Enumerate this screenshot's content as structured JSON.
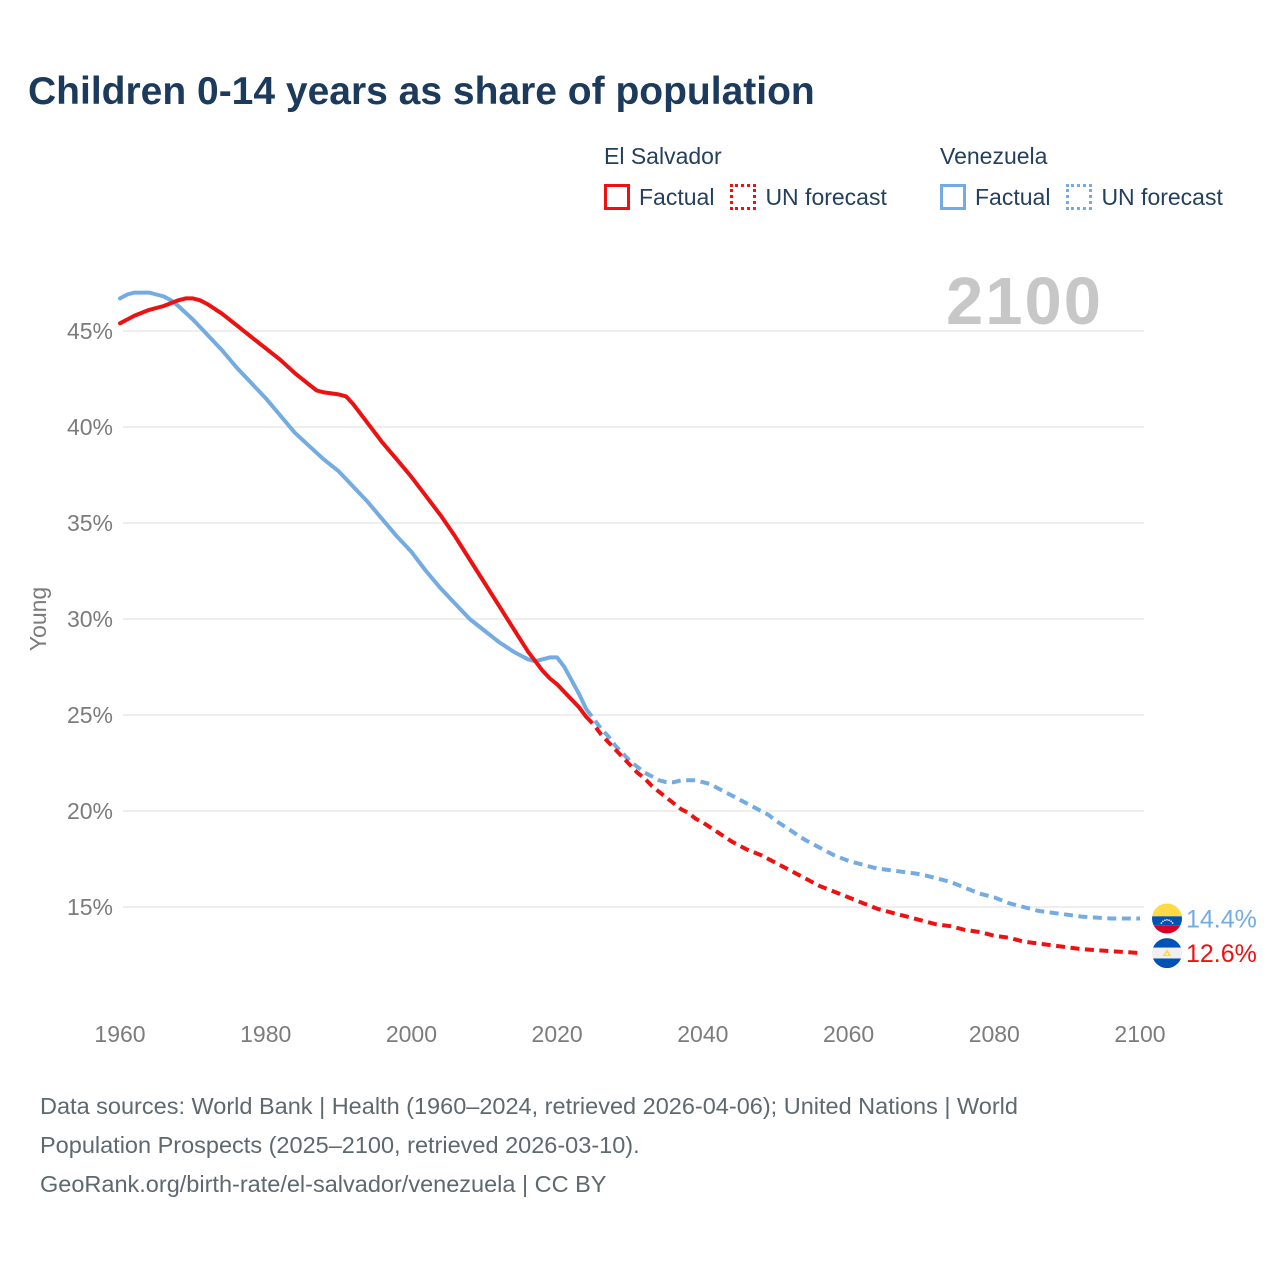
{
  "title": "Children 0-14 years as share of population",
  "watermark": "2100",
  "legend": {
    "groups": [
      {
        "country": "El Salvador",
        "color": "#ee1111",
        "items": [
          {
            "label": "Factual",
            "style": "solid"
          },
          {
            "label": "UN forecast",
            "style": "dotted"
          }
        ]
      },
      {
        "country": "Venezuela",
        "color": "#74ace2",
        "items": [
          {
            "label": "Factual",
            "style": "solid"
          },
          {
            "label": "UN forecast",
            "style": "dotted"
          }
        ]
      }
    ]
  },
  "chart_data": {
    "type": "line",
    "title": "Children 0-14 years as share of population",
    "xlabel": "",
    "ylabel": "Young",
    "grid": true,
    "xlim": [
      1958,
      2106
    ],
    "ylim": [
      12,
      48
    ],
    "x_ticks": [
      {
        "value": 1960,
        "label": "1960"
      },
      {
        "value": 1980,
        "label": "1980"
      },
      {
        "value": 2000,
        "label": "2000"
      },
      {
        "value": 2020,
        "label": "2020"
      },
      {
        "value": 2040,
        "label": "2040"
      },
      {
        "value": 2060,
        "label": "2060"
      },
      {
        "value": 2080,
        "label": "2080"
      },
      {
        "value": 2100,
        "label": "2100"
      }
    ],
    "y_ticks": [
      {
        "value": 45,
        "label": "45%"
      },
      {
        "value": 40,
        "label": "40%"
      },
      {
        "value": 35,
        "label": "35%"
      },
      {
        "value": 30,
        "label": "30%"
      },
      {
        "value": 25,
        "label": "25%"
      },
      {
        "value": 20,
        "label": "20%"
      },
      {
        "value": 15,
        "label": "15%"
      }
    ],
    "series": [
      {
        "name": "Venezuela Factual",
        "key": "venezuela-factual",
        "color": "#74ace2",
        "dashed": false,
        "points": [
          [
            1960,
            46.7
          ],
          [
            1961,
            46.9
          ],
          [
            1962,
            47.0
          ],
          [
            1963,
            47.0
          ],
          [
            1964,
            47.0
          ],
          [
            1965,
            46.9
          ],
          [
            1966,
            46.8
          ],
          [
            1967,
            46.6
          ],
          [
            1968,
            46.3
          ],
          [
            1970,
            45.6
          ],
          [
            1972,
            44.8
          ],
          [
            1974,
            44.0
          ],
          [
            1976,
            43.1
          ],
          [
            1978,
            42.3
          ],
          [
            1980,
            41.5
          ],
          [
            1982,
            40.6
          ],
          [
            1984,
            39.7
          ],
          [
            1986,
            39.0
          ],
          [
            1988,
            38.3
          ],
          [
            1990,
            37.7
          ],
          [
            1992,
            36.9
          ],
          [
            1994,
            36.1
          ],
          [
            1996,
            35.2
          ],
          [
            1998,
            34.3
          ],
          [
            2000,
            33.5
          ],
          [
            2002,
            32.5
          ],
          [
            2004,
            31.6
          ],
          [
            2006,
            30.8
          ],
          [
            2008,
            30.0
          ],
          [
            2010,
            29.4
          ],
          [
            2012,
            28.8
          ],
          [
            2014,
            28.3
          ],
          [
            2015,
            28.1
          ],
          [
            2016,
            27.9
          ],
          [
            2017,
            27.8
          ],
          [
            2018,
            27.9
          ],
          [
            2019,
            28.0
          ],
          [
            2020,
            28.0
          ],
          [
            2021,
            27.5
          ],
          [
            2022,
            26.8
          ],
          [
            2023,
            26.1
          ],
          [
            2024,
            25.3
          ]
        ]
      },
      {
        "name": "Venezuela UN forecast",
        "key": "venezuela-forecast",
        "color": "#74ace2",
        "dashed": true,
        "points": [
          [
            2024,
            25.3
          ],
          [
            2025,
            24.8
          ],
          [
            2026,
            24.3
          ],
          [
            2027,
            23.9
          ],
          [
            2028,
            23.4
          ],
          [
            2029,
            23.0
          ],
          [
            2030,
            22.6
          ],
          [
            2031,
            22.3
          ],
          [
            2032,
            22.0
          ],
          [
            2033,
            21.8
          ],
          [
            2034,
            21.6
          ],
          [
            2035,
            21.5
          ],
          [
            2036,
            21.5
          ],
          [
            2037,
            21.6
          ],
          [
            2038,
            21.6
          ],
          [
            2039,
            21.6
          ],
          [
            2040,
            21.5
          ],
          [
            2041,
            21.4
          ],
          [
            2042,
            21.2
          ],
          [
            2043,
            21.0
          ],
          [
            2044,
            20.8
          ],
          [
            2045,
            20.6
          ],
          [
            2046,
            20.4
          ],
          [
            2047,
            20.2
          ],
          [
            2048,
            20.0
          ],
          [
            2049,
            19.8
          ],
          [
            2050,
            19.5
          ],
          [
            2052,
            19.0
          ],
          [
            2054,
            18.5
          ],
          [
            2056,
            18.1
          ],
          [
            2058,
            17.7
          ],
          [
            2060,
            17.4
          ],
          [
            2062,
            17.2
          ],
          [
            2064,
            17.0
          ],
          [
            2066,
            16.9
          ],
          [
            2068,
            16.8
          ],
          [
            2070,
            16.7
          ],
          [
            2072,
            16.5
          ],
          [
            2074,
            16.3
          ],
          [
            2076,
            16.0
          ],
          [
            2078,
            15.7
          ],
          [
            2080,
            15.5
          ],
          [
            2082,
            15.2
          ],
          [
            2084,
            15.0
          ],
          [
            2086,
            14.8
          ],
          [
            2088,
            14.7
          ],
          [
            2090,
            14.6
          ],
          [
            2092,
            14.5
          ],
          [
            2094,
            14.45
          ],
          [
            2096,
            14.4
          ],
          [
            2098,
            14.4
          ],
          [
            2100,
            14.4
          ]
        ]
      },
      {
        "name": "El Salvador Factual",
        "key": "el-salvador-factual",
        "color": "#ee1111",
        "dashed": false,
        "points": [
          [
            1960,
            45.4
          ],
          [
            1962,
            45.8
          ],
          [
            1964,
            46.1
          ],
          [
            1966,
            46.3
          ],
          [
            1968,
            46.6
          ],
          [
            1969,
            46.7
          ],
          [
            1970,
            46.7
          ],
          [
            1971,
            46.6
          ],
          [
            1972,
            46.4
          ],
          [
            1974,
            45.9
          ],
          [
            1976,
            45.3
          ],
          [
            1978,
            44.7
          ],
          [
            1980,
            44.1
          ],
          [
            1982,
            43.5
          ],
          [
            1984,
            42.8
          ],
          [
            1986,
            42.2
          ],
          [
            1987,
            41.9
          ],
          [
            1988,
            41.8
          ],
          [
            1990,
            41.7
          ],
          [
            1991,
            41.6
          ],
          [
            1992,
            41.2
          ],
          [
            1994,
            40.2
          ],
          [
            1996,
            39.2
          ],
          [
            1998,
            38.3
          ],
          [
            2000,
            37.4
          ],
          [
            2002,
            36.4
          ],
          [
            2004,
            35.4
          ],
          [
            2006,
            34.3
          ],
          [
            2008,
            33.1
          ],
          [
            2010,
            31.9
          ],
          [
            2012,
            30.7
          ],
          [
            2014,
            29.5
          ],
          [
            2016,
            28.3
          ],
          [
            2017,
            27.8
          ],
          [
            2018,
            27.3
          ],
          [
            2019,
            26.9
          ],
          [
            2020,
            26.6
          ],
          [
            2021,
            26.2
          ],
          [
            2022,
            25.8
          ],
          [
            2023,
            25.4
          ],
          [
            2024,
            24.9
          ]
        ]
      },
      {
        "name": "El Salvador UN forecast",
        "key": "el-salvador-forecast",
        "color": "#ee1111",
        "dashed": true,
        "points": [
          [
            2024,
            24.9
          ],
          [
            2025,
            24.5
          ],
          [
            2026,
            24.0
          ],
          [
            2027,
            23.6
          ],
          [
            2028,
            23.2
          ],
          [
            2029,
            22.8
          ],
          [
            2030,
            22.4
          ],
          [
            2031,
            22.0
          ],
          [
            2032,
            21.7
          ],
          [
            2033,
            21.3
          ],
          [
            2034,
            21.0
          ],
          [
            2035,
            20.7
          ],
          [
            2036,
            20.4
          ],
          [
            2037,
            20.1
          ],
          [
            2038,
            19.9
          ],
          [
            2039,
            19.6
          ],
          [
            2040,
            19.4
          ],
          [
            2042,
            18.9
          ],
          [
            2044,
            18.4
          ],
          [
            2046,
            18.0
          ],
          [
            2048,
            17.7
          ],
          [
            2050,
            17.3
          ],
          [
            2052,
            16.9
          ],
          [
            2054,
            16.5
          ],
          [
            2056,
            16.1
          ],
          [
            2058,
            15.8
          ],
          [
            2060,
            15.5
          ],
          [
            2062,
            15.2
          ],
          [
            2064,
            14.9
          ],
          [
            2066,
            14.7
          ],
          [
            2068,
            14.5
          ],
          [
            2070,
            14.3
          ],
          [
            2072,
            14.1
          ],
          [
            2074,
            14.0
          ],
          [
            2076,
            13.8
          ],
          [
            2078,
            13.7
          ],
          [
            2080,
            13.5
          ],
          [
            2082,
            13.4
          ],
          [
            2084,
            13.2
          ],
          [
            2086,
            13.1
          ],
          [
            2088,
            13.0
          ],
          [
            2090,
            12.9
          ],
          [
            2092,
            12.8
          ],
          [
            2094,
            12.75
          ],
          [
            2096,
            12.7
          ],
          [
            2098,
            12.65
          ],
          [
            2100,
            12.6
          ]
        ]
      }
    ],
    "end_labels": [
      {
        "country": "Venezuela",
        "label": "14.4%",
        "value": 14.4,
        "color": "#74ace2",
        "flag": "venezuela"
      },
      {
        "country": "El Salvador",
        "label": "12.6%",
        "value": 12.6,
        "color": "#ee1111",
        "flag": "el-salvador"
      }
    ],
    "flag_colors": {
      "venezuela": {
        "yellow": "#FFDA44",
        "blue": "#0052B4",
        "red": "#D80027",
        "stars": "#F0F0F0"
      },
      "el_salvador": {
        "blue": "#0052B4",
        "white": "#F0F0F0",
        "emblem": "#FFDA44"
      }
    },
    "colors": {
      "grid": "#e9e9e9",
      "ticks": "#7c7c7c",
      "watermark": "#c7c7c7"
    }
  },
  "footer": {
    "lines": [
      "Data sources: World Bank | Health (1960–2024, retrieved 2026-04-06); United Nations | World",
      "Population Prospects (2025–2100, retrieved 2026-03-10).",
      "GeoRank.org/birth-rate/el-salvador/venezuela | CC BY"
    ]
  }
}
